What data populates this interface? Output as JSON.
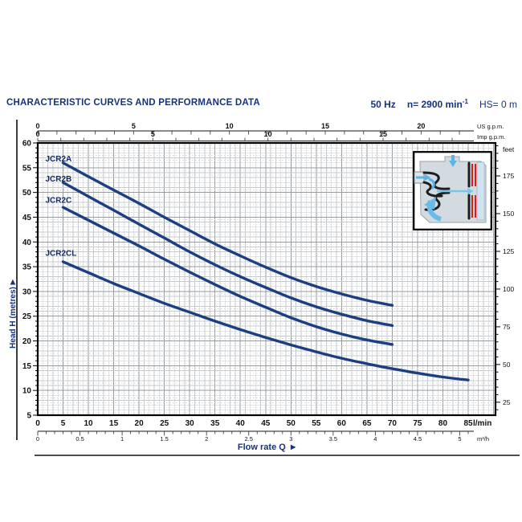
{
  "header": {
    "title": "CHARACTERISTIC CURVES AND PERFORMANCE DATA",
    "frequency": "50 Hz",
    "speed": "n= 2900 min",
    "speed_sup": "-1",
    "suction": "HS= 0 m"
  },
  "icons": {
    "arrow_right": "▶"
  },
  "chart_data": {
    "type": "line",
    "title": "",
    "xlabel": "Flow rate Q",
    "ylabel": "Head H (metres)",
    "grid": "on",
    "x_axes": {
      "lmin": {
        "unit": "l/min",
        "min": 0,
        "max": 90.5,
        "tick_labels": [
          0,
          5,
          10,
          15,
          20,
          25,
          30,
          35,
          40,
          45,
          50,
          55,
          60,
          65,
          70,
          75,
          80,
          85
        ]
      },
      "m3h": {
        "unit": "m³/h",
        "tick_labels": [
          0,
          0.5,
          1,
          1.5,
          2,
          2.5,
          3,
          3.5,
          4,
          4.5,
          5
        ],
        "lmin_per_unit": 16.6667
      },
      "us_gpm": {
        "unit": "US g.p.m.",
        "tick_labels": [
          0,
          5,
          10,
          15,
          20
        ],
        "lmin_per_unit": 3.785
      },
      "imp_gpm": {
        "unit": "Imp g.p.m.",
        "tick_labels": [
          0,
          5,
          10,
          15
        ],
        "lmin_per_unit": 4.546
      }
    },
    "y_axes": {
      "metres": {
        "unit": "metres",
        "min": 5,
        "max": 60,
        "tick_labels": [
          5,
          10,
          15,
          20,
          25,
          30,
          35,
          40,
          45,
          50,
          55,
          60
        ]
      },
      "feet": {
        "unit": "feet",
        "tick_labels": [
          25,
          50,
          75,
          100,
          125,
          150,
          175
        ],
        "m_per_unit": 0.3048
      }
    },
    "series": [
      {
        "name": "JCR2A",
        "label_at": [
          1.5,
          56.3
        ],
        "points": [
          [
            5,
            56
          ],
          [
            10,
            53.2
          ],
          [
            15,
            50.5
          ],
          [
            20,
            47.8
          ],
          [
            25,
            45
          ],
          [
            30,
            42.3
          ],
          [
            35,
            39.6
          ],
          [
            40,
            37.2
          ],
          [
            45,
            34.9
          ],
          [
            50,
            32.8
          ],
          [
            55,
            31
          ],
          [
            60,
            29.5
          ],
          [
            65,
            28.2
          ],
          [
            70,
            27.2
          ]
        ]
      },
      {
        "name": "JCR2B",
        "label_at": [
          1.5,
          52.2
        ],
        "points": [
          [
            5,
            52
          ],
          [
            10,
            49.2
          ],
          [
            15,
            46.4
          ],
          [
            20,
            43.6
          ],
          [
            25,
            40.8
          ],
          [
            30,
            38
          ],
          [
            35,
            35.4
          ],
          [
            40,
            33
          ],
          [
            45,
            30.8
          ],
          [
            50,
            28.7
          ],
          [
            55,
            26.9
          ],
          [
            60,
            25.4
          ],
          [
            65,
            24.1
          ],
          [
            70,
            23.1
          ]
        ]
      },
      {
        "name": "JCR2C",
        "label_at": [
          1.5,
          47.9
        ],
        "points": [
          [
            5,
            47
          ],
          [
            10,
            44.4
          ],
          [
            15,
            41.8
          ],
          [
            20,
            39.2
          ],
          [
            25,
            36.5
          ],
          [
            30,
            33.9
          ],
          [
            35,
            31.4
          ],
          [
            40,
            29
          ],
          [
            45,
            26.8
          ],
          [
            50,
            24.7
          ],
          [
            55,
            22.9
          ],
          [
            60,
            21.4
          ],
          [
            65,
            20.2
          ],
          [
            70,
            19.3
          ]
        ]
      },
      {
        "name": "JCR2CL",
        "label_at": [
          1.5,
          37.2
        ],
        "points": [
          [
            5,
            36
          ],
          [
            10,
            33.8
          ],
          [
            15,
            31.6
          ],
          [
            20,
            29.6
          ],
          [
            25,
            27.6
          ],
          [
            30,
            25.8
          ],
          [
            35,
            24
          ],
          [
            40,
            22.3
          ],
          [
            45,
            20.7
          ],
          [
            50,
            19.2
          ],
          [
            55,
            17.8
          ],
          [
            60,
            16.5
          ],
          [
            65,
            15.4
          ],
          [
            70,
            14.4
          ],
          [
            75,
            13.5
          ],
          [
            80,
            12.7
          ],
          [
            85,
            12.1
          ]
        ]
      }
    ],
    "colors": {
      "curve": "#1c3f82",
      "curve_label": "#152a5e",
      "grid_minor": "#c6cacd",
      "grid_dotted": "#d3d6d9",
      "grid_major": "#969aa1",
      "axis_line": "#444444",
      "tick_text": "#111111",
      "navy": "#16337c"
    }
  }
}
